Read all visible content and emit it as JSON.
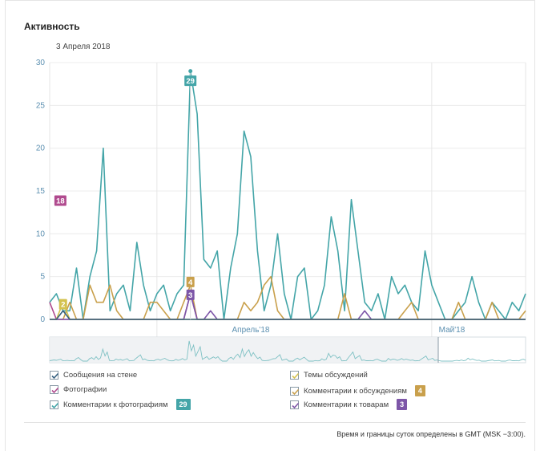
{
  "header": {
    "title": "Активность",
    "date": "3 Апреля 2018"
  },
  "legend": [
    {
      "label": "Сообщения на стене",
      "color": "#35607f",
      "badge": ""
    },
    {
      "label": "Фотографии",
      "color": "#b04a8e",
      "badge": ""
    },
    {
      "label": "Комментарии к фотографиям",
      "color": "#44a5a8",
      "badge": "29"
    },
    {
      "label": "Темы обсуждений",
      "color": "#d4c24e",
      "badge": ""
    },
    {
      "label": "Комментарии к обсуждениям",
      "color": "#c9a04c",
      "badge": "4"
    },
    {
      "label": "Комментарии к товарам",
      "color": "#7d56a8",
      "badge": "3"
    }
  ],
  "footnote": "Время и границы суток определены в GMT (MSK −3:00).",
  "chart_data": {
    "type": "line",
    "ylim": [
      0,
      30
    ],
    "yticks": [
      0,
      5,
      10,
      15,
      20,
      25,
      30
    ],
    "xtick_labels": [
      {
        "label": "Апрель'18",
        "x": 30
      },
      {
        "label": "Май'18",
        "x": 60
      }
    ],
    "series": [
      {
        "name": "Комментарии к фотографиям",
        "color": "#44a5a8",
        "values": [
          2,
          3,
          1,
          1,
          6,
          0,
          5,
          8,
          20,
          1,
          3,
          4,
          1,
          9,
          4,
          1,
          3,
          4,
          1,
          3,
          4,
          29,
          24,
          7,
          6,
          8,
          0,
          6,
          10,
          22,
          19,
          8,
          1,
          4,
          10,
          3,
          0,
          5,
          6,
          0,
          1,
          4,
          12,
          8,
          1,
          14,
          8,
          2,
          1,
          3,
          0,
          5,
          3,
          4,
          2,
          1,
          8,
          4,
          2,
          0,
          0,
          1,
          2,
          5,
          2,
          0,
          2,
          1,
          0,
          2,
          1,
          3
        ]
      },
      {
        "name": "Комментарии к обсуждениям",
        "color": "#c9a04c",
        "values": [
          0,
          0,
          0,
          2,
          0,
          0,
          4,
          2,
          2,
          4,
          1,
          0,
          0,
          0,
          0,
          2,
          2,
          1,
          0,
          0,
          2,
          4,
          0,
          0,
          0,
          0,
          0,
          0,
          0,
          2,
          1,
          2,
          4,
          5,
          1,
          0,
          0,
          0,
          0,
          0,
          0,
          0,
          0,
          0,
          3,
          0,
          0,
          0,
          0,
          0,
          0,
          0,
          0,
          1,
          2,
          0,
          0,
          0,
          0,
          0,
          0,
          2,
          0,
          0,
          0,
          0,
          2,
          0,
          0,
          0,
          0,
          1
        ]
      },
      {
        "name": "Фотографии",
        "color": "#b04a8e",
        "values": [
          2,
          0,
          0,
          0,
          0,
          0,
          0,
          0,
          0,
          0,
          0,
          0,
          0,
          0,
          0,
          0,
          0,
          0,
          0,
          0,
          0,
          3,
          0,
          0,
          0,
          0,
          0,
          0,
          0,
          0,
          0,
          0,
          0,
          0,
          0,
          0,
          0,
          0,
          0,
          0,
          0,
          0,
          0,
          0,
          0,
          0,
          0,
          0,
          0,
          0,
          0,
          0,
          0,
          0,
          0,
          0,
          0,
          0,
          0,
          0,
          0,
          0,
          0,
          0,
          0,
          0,
          0,
          0,
          0,
          0,
          0,
          0
        ]
      },
      {
        "name": "Комментарии к товарам",
        "color": "#7d56a8",
        "values": [
          0,
          0,
          0,
          0,
          0,
          0,
          0,
          0,
          0,
          0,
          0,
          0,
          0,
          0,
          0,
          0,
          0,
          0,
          0,
          0,
          0,
          3,
          0,
          0,
          1,
          0,
          0,
          0,
          0,
          0,
          0,
          0,
          0,
          0,
          0,
          0,
          0,
          0,
          0,
          0,
          0,
          0,
          0,
          0,
          0,
          0,
          0,
          1,
          0,
          0,
          0,
          0,
          0,
          0,
          0,
          0,
          0,
          0,
          0,
          0,
          0,
          0,
          0,
          0,
          0,
          0,
          0,
          0,
          0,
          0,
          0,
          0
        ]
      },
      {
        "name": "Темы обсуждений",
        "color": "#d4c24e",
        "values": [
          0,
          0,
          2,
          0,
          0,
          0,
          0,
          0,
          0,
          0,
          0,
          0,
          0,
          0,
          0,
          0,
          0,
          0,
          0,
          0,
          0,
          0,
          0,
          0,
          0,
          0,
          0,
          0,
          0,
          0,
          0,
          0,
          0,
          0,
          0,
          0,
          0,
          0,
          0,
          0,
          0,
          0,
          0,
          0,
          0,
          0,
          0,
          0,
          0,
          0,
          0,
          0,
          0,
          0,
          0,
          0,
          0,
          0,
          0,
          0,
          0,
          0,
          0,
          0,
          0,
          0,
          0,
          0,
          0,
          0,
          0,
          0
        ]
      },
      {
        "name": "Сообщения на стене",
        "color": "#35607f",
        "values": [
          0,
          0,
          1,
          0,
          0,
          0,
          0,
          0,
          0,
          0,
          0,
          0,
          0,
          0,
          0,
          0,
          0,
          0,
          0,
          0,
          0,
          0,
          0,
          0,
          0,
          0,
          0,
          0,
          0,
          0,
          0,
          0,
          0,
          0,
          0,
          0,
          0,
          0,
          0,
          0,
          0,
          0,
          0,
          0,
          0,
          0,
          0,
          0,
          0,
          0,
          0,
          0,
          0,
          0,
          0,
          0,
          0,
          0,
          0,
          0,
          0,
          0,
          0,
          0,
          0,
          0,
          0,
          0,
          0,
          0,
          0,
          0
        ]
      }
    ],
    "annotations": [
      {
        "text": "29",
        "x": 21,
        "y": 29,
        "color": "#44a5a8"
      },
      {
        "text": "4",
        "x": 21,
        "y": 5.5,
        "color": "#c9a04c"
      },
      {
        "text": "3",
        "x": 21,
        "y": 4,
        "color": "#7d56a8"
      },
      {
        "text": "2",
        "x": 2,
        "y": 2.9,
        "color": "#d4c24e"
      },
      {
        "text": "18",
        "x": 1.6,
        "y": 15,
        "color": "#b04a8e"
      }
    ]
  }
}
